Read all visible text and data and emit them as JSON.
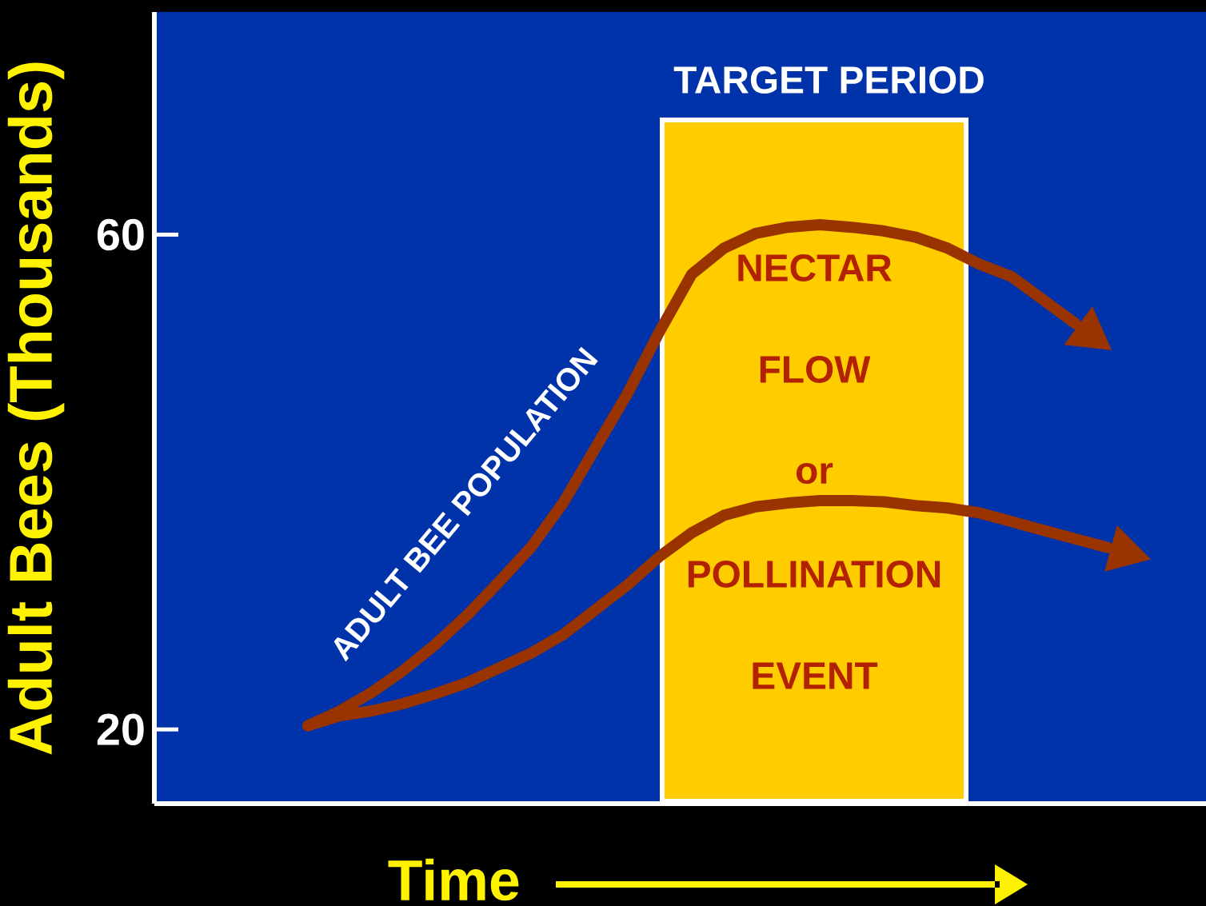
{
  "chart_data": {
    "type": "line",
    "ylabel": "Adult Bees (Thousands)",
    "xlabel": "Time",
    "ylim": [
      14,
      78
    ],
    "categories": [
      null,
      null,
      null,
      null,
      null,
      null,
      null,
      null,
      null,
      null,
      null,
      null,
      null,
      null,
      null,
      null,
      null,
      null,
      null,
      null,
      null,
      null,
      null,
      null,
      null,
      null
    ],
    "yticks": [
      20,
      60
    ],
    "tick_labels": "y",
    "grid": false,
    "marker": "none",
    "line_style": "solid",
    "annotations": [
      "ADULT BEE POPULATION",
      "TARGET PERIOD",
      "NECTAR",
      "FLOW",
      "or",
      "POLLINATION",
      "EVENT"
    ],
    "series": [
      {
        "color": "#993300",
        "values": [
          20.3,
          21.5,
          23.0,
          24.8,
          26.9,
          29.3,
          32.0,
          34.8,
          38.4,
          42.8,
          47.2,
          52.2,
          56.8,
          58.9,
          60.1,
          60.6,
          60.8,
          60.6,
          60.3,
          59.8,
          58.9,
          57.6,
          56.6,
          54.7,
          52.8,
          null
        ]
      },
      {
        "color": "#993300",
        "values": [
          20.3,
          21.1,
          21.5,
          22.1,
          22.9,
          23.8,
          25.0,
          26.2,
          27.7,
          29.7,
          31.7,
          34.0,
          35.9,
          37.3,
          38.0,
          38.3,
          38.5,
          38.5,
          38.4,
          38.1,
          37.9,
          37.5,
          36.8,
          36.1,
          35.4,
          34.7
        ]
      }
    ]
  }
}
